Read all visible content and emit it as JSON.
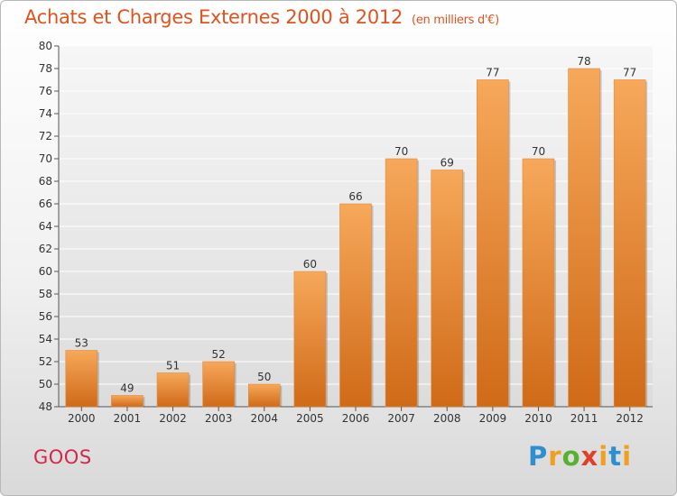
{
  "title": "Achats et Charges Externes 2000 à 2012",
  "unit": "(en milliers d'€)",
  "commune": "GOOS",
  "brand": "Proxiti",
  "colors": {
    "bar_light": "#f7a85a",
    "bar_dark": "#cf6a18",
    "title": "#e0531e",
    "commune": "#d2284c"
  },
  "chart_data": {
    "type": "bar",
    "title": "Achats et Charges Externes 2000 à 2012",
    "categories": [
      "2000",
      "2001",
      "2002",
      "2003",
      "2004",
      "2005",
      "2006",
      "2007",
      "2008",
      "2009",
      "2010",
      "2011",
      "2012"
    ],
    "values": [
      53,
      49,
      51,
      52,
      50,
      60,
      66,
      70,
      69,
      77,
      70,
      78,
      77
    ],
    "ylim": [
      48,
      80
    ],
    "yticks": [
      48,
      50,
      52,
      54,
      56,
      58,
      60,
      62,
      64,
      66,
      68,
      70,
      72,
      74,
      76,
      78,
      80
    ],
    "grid": true,
    "xlabel": "",
    "ylabel": ""
  }
}
